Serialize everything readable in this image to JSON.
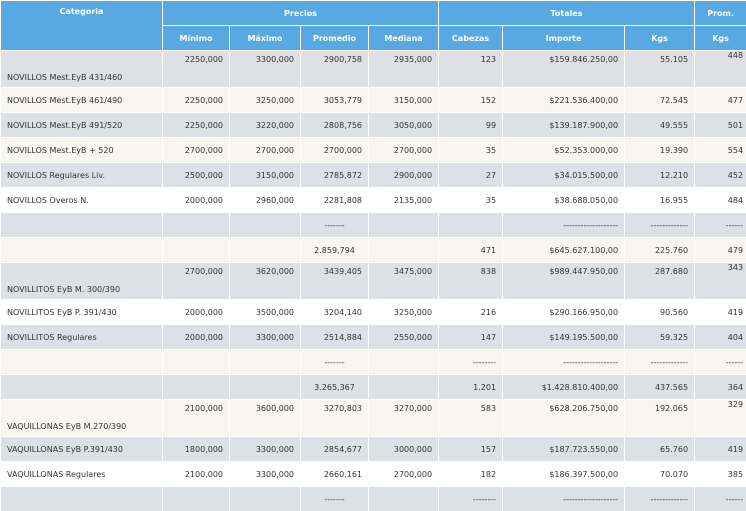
{
  "headers": {
    "categoria": "Categoria",
    "precios": "Precios",
    "totales": "Totales",
    "prom": "Prom.",
    "minimo": "Mínimo",
    "maximo": "Máximo",
    "promedio": "Promedio",
    "mediana": "Mediana",
    "cabezas": "Cabezas",
    "importe": "Importe",
    "kgs": "Kgs",
    "prom_kgs": "Kgs"
  },
  "rows": [
    {
      "categoria": "NOVILLOS Mest.EyB 431/460",
      "minimo": "2250,000",
      "maximo": "3300,000",
      "promedio": "2900,758",
      "mediana": "2935,000",
      "cabezas": "123",
      "importe": "$159.846.250,00",
      "kgs": "55.105",
      "prom_kgs": "448"
    },
    {
      "categoria": "NOVILLOS Mest.EyB 461/490",
      "minimo": "2250,000",
      "maximo": "3250,000",
      "promedio": "3053,779",
      "mediana": "3150,000",
      "cabezas": "152",
      "importe": "$221.536.400,00",
      "kgs": "72.545",
      "prom_kgs": "477"
    },
    {
      "categoria": "NOVILLOS Mest.EyB 491/520",
      "minimo": "2250,000",
      "maximo": "3220,000",
      "promedio": "2808,756",
      "mediana": "3050,000",
      "cabezas": "99",
      "importe": "$139.187.900,00",
      "kgs": "49.555",
      "prom_kgs": "501"
    },
    {
      "categoria": "NOVILLOS Mest.EyB + 520",
      "minimo": "2700,000",
      "maximo": "2700,000",
      "promedio": "2700,000",
      "mediana": "2700,000",
      "cabezas": "35",
      "importe": "$52.353.000,00",
      "kgs": "19.390",
      "prom_kgs": "554"
    },
    {
      "categoria": "NOVILLOS Regulares Liv.",
      "minimo": "2500,000",
      "maximo": "3150,000",
      "promedio": "2785,872",
      "mediana": "2900,000",
      "cabezas": "27",
      "importe": "$34.015.500,00",
      "kgs": "12.210",
      "prom_kgs": "452"
    },
    {
      "categoria": "NOVILLOS Overos N.",
      "minimo": "2000,000",
      "maximo": "2960,000",
      "promedio": "2281,808",
      "mediana": "2135,000",
      "cabezas": "35",
      "importe": "$38.688.050,00",
      "kgs": "16.955",
      "prom_kgs": "484"
    },
    {
      "categoria": "",
      "minimo": "",
      "maximo": "",
      "promedio": "-------",
      "mediana": "",
      "cabezas": "",
      "importe": "-------------------",
      "kgs": "-------------",
      "prom_kgs": "------"
    },
    {
      "categoria": "",
      "minimo": "",
      "maximo": "",
      "promedio": "2.859,794",
      "mediana": "",
      "cabezas": "471",
      "importe": "$645.627.100,00",
      "kgs": "225.760",
      "prom_kgs": "479"
    },
    {
      "categoria": "NOVILLITOS EyB M. 300/390",
      "minimo": "2700,000",
      "maximo": "3620,000",
      "promedio": "3439,405",
      "mediana": "3475,000",
      "cabezas": "838",
      "importe": "$989.447.950,00",
      "kgs": "287.680",
      "prom_kgs": "343"
    },
    {
      "categoria": "NOVILLITOS EyB P. 391/430",
      "minimo": "2000,000",
      "maximo": "3500,000",
      "promedio": "3204,140",
      "mediana": "3250,000",
      "cabezas": "216",
      "importe": "$290.166.950,00",
      "kgs": "90.560",
      "prom_kgs": "419"
    },
    {
      "categoria": "NOVILLITOS Regulares",
      "minimo": "2000,000",
      "maximo": "3300,000",
      "promedio": "2514,884",
      "mediana": "2550,000",
      "cabezas": "147",
      "importe": "$149.195.500,00",
      "kgs": "59.325",
      "prom_kgs": "404"
    },
    {
      "categoria": "",
      "minimo": "",
      "maximo": "",
      "promedio": "-------",
      "mediana": "",
      "cabezas": "--------",
      "importe": "-------------------",
      "kgs": "-------------",
      "prom_kgs": "------"
    },
    {
      "categoria": "",
      "minimo": "",
      "maximo": "",
      "promedio": "3.265,367",
      "mediana": "",
      "cabezas": "1.201",
      "importe": "$1.428.810.400,00",
      "kgs": "437.565",
      "prom_kgs": "364"
    },
    {
      "categoria": "VAQUILLONAS EyB M.270/390",
      "minimo": "2100,000",
      "maximo": "3600,000",
      "promedio": "3270,803",
      "mediana": "3270,000",
      "cabezas": "583",
      "importe": "$628.206.750,00",
      "kgs": "192.065",
      "prom_kgs": "329"
    },
    {
      "categoria": "VAQUILLONAS EyB P.391/430",
      "minimo": "1800,000",
      "maximo": "3300,000",
      "promedio": "2854,677",
      "mediana": "3000,000",
      "cabezas": "157",
      "importe": "$187.723.550,00",
      "kgs": "65.760",
      "prom_kgs": "419"
    },
    {
      "categoria": "VAQUILLONAS Regulares",
      "minimo": "2100,000",
      "maximo": "3300,000",
      "promedio": "2660,161",
      "mediana": "2700,000",
      "cabezas": "182",
      "importe": "$186.397.500,00",
      "kgs": "70.070",
      "prom_kgs": "385"
    },
    {
      "categoria": "",
      "minimo": "",
      "maximo": "",
      "promedio": "-------",
      "mediana": "",
      "cabezas": "--------",
      "importe": "-------------------",
      "kgs": "-------------",
      "prom_kgs": "------"
    }
  ]
}
